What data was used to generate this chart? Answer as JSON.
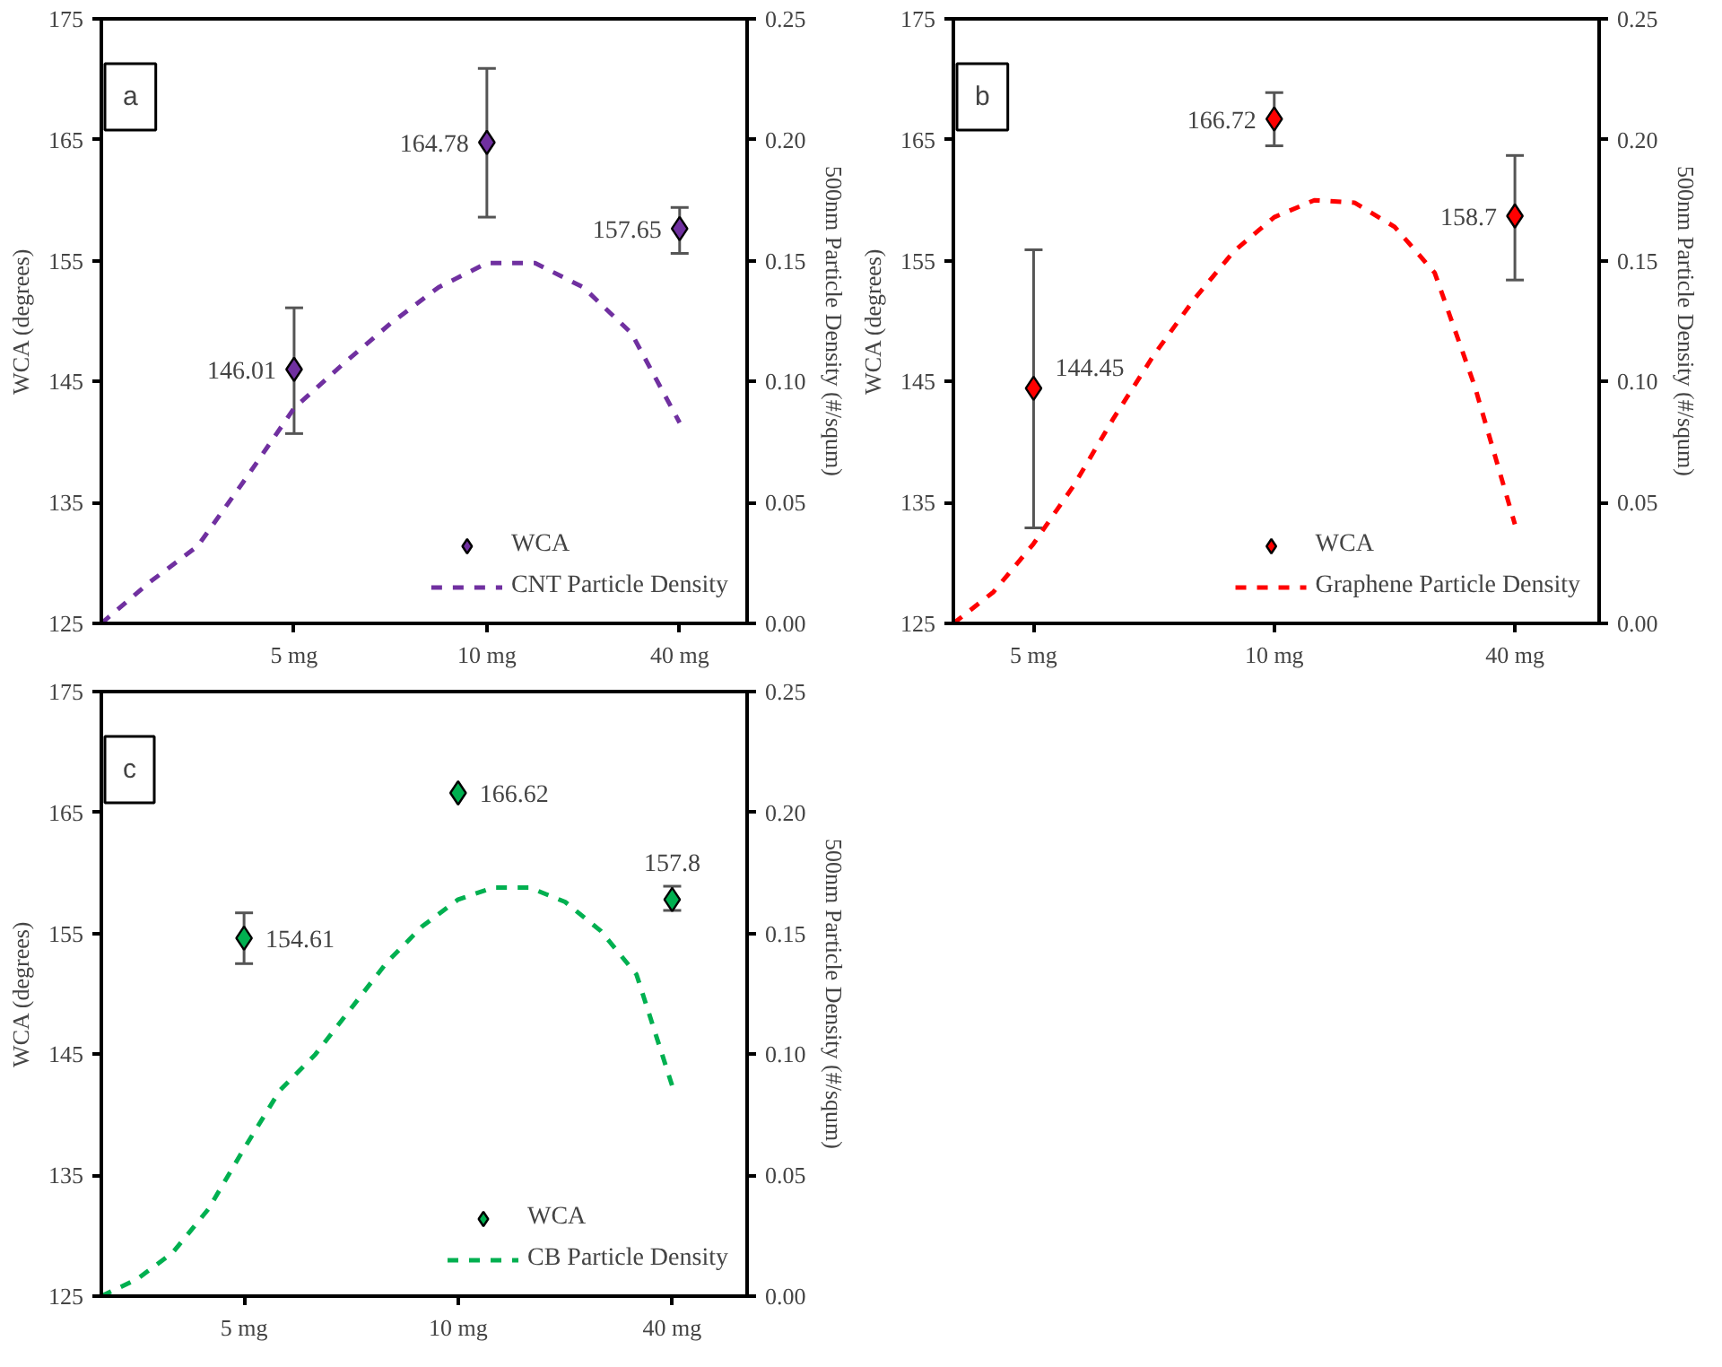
{
  "chart_data": [
    {
      "type": "scatter",
      "annotations": [
        "a"
      ],
      "ylabel": "WCA (degrees)",
      "y2label": "500nm Particle Density (#/squm)",
      "categories": [
        null,
        null,
        null,
        null,
        "5 mg",
        null,
        null,
        null,
        "10 mg",
        null,
        null,
        null,
        "40 mg"
      ],
      "ylim": [
        125,
        175
      ],
      "yticks": [
        125,
        135,
        145,
        155,
        165,
        175
      ],
      "y2lim": [
        0,
        0.25
      ],
      "y2ticks": [
        {
          "value": 0,
          "label": "0.00"
        },
        {
          "value": 0.05,
          "label": "0.05"
        },
        {
          "value": 0.1,
          "label": "0.10"
        },
        {
          "value": 0.15,
          "label": "0.15"
        },
        {
          "value": 0.2,
          "label": "0.20"
        },
        {
          "value": 0.25,
          "label": "0.25"
        }
      ],
      "grid": false,
      "legend": "bottom right",
      "series": [
        {
          "name": "WCA",
          "marker": "diamond",
          "color": "#7030a0",
          "values": [
            null,
            null,
            null,
            null,
            146.01,
            null,
            null,
            null,
            164.78,
            null,
            null,
            null,
            157.65
          ],
          "errors": [
            null,
            null,
            null,
            null,
            [
              140.7,
              151.1
            ],
            null,
            null,
            null,
            [
              158.6,
              170.9
            ],
            null,
            null,
            null,
            [
              155.6,
              159.4
            ]
          ],
          "data_labels": true
        },
        {
          "name": "CNT Particle Density",
          "type": "line",
          "axis": "y2",
          "line_style": "dashed",
          "marker": "none",
          "color": "#7030a0",
          "values": [
            0,
            0.017,
            0.032,
            0.06,
            0.089,
            0.107,
            0.124,
            0.139,
            0.149,
            0.149,
            0.139,
            0.12,
            0.083
          ]
        }
      ]
    },
    {
      "type": "scatter",
      "annotations": [
        "b"
      ],
      "ylabel": "WCA (degrees)",
      "y2label": "500nm Particle Density (#/squm)",
      "categories": [
        null,
        null,
        "5 mg",
        null,
        null,
        null,
        null,
        null,
        "10 mg",
        null,
        null,
        null,
        null,
        null,
        "40 mg"
      ],
      "ylim": [
        125,
        175
      ],
      "yticks": [
        125,
        135,
        145,
        155,
        165,
        175
      ],
      "y2lim": [
        0,
        0.25
      ],
      "y2ticks": [
        {
          "value": 0,
          "label": "0.00"
        },
        {
          "value": 0.05,
          "label": "0.05"
        },
        {
          "value": 0.1,
          "label": "0.10"
        },
        {
          "value": 0.15,
          "label": "0.15"
        },
        {
          "value": 0.2,
          "label": "0.20"
        },
        {
          "value": 0.25,
          "label": "0.25"
        }
      ],
      "grid": false,
      "legend": "bottom right",
      "series": [
        {
          "name": "WCA",
          "marker": "diamond",
          "color": "#ff0000",
          "values": [
            null,
            null,
            144.45,
            null,
            null,
            null,
            null,
            null,
            166.72,
            null,
            null,
            null,
            null,
            null,
            158.7
          ],
          "errors": [
            null,
            null,
            [
              132.9,
              155.9
            ],
            null,
            null,
            null,
            null,
            null,
            [
              164.5,
              168.9
            ],
            null,
            null,
            null,
            null,
            null,
            [
              153.4,
              163.7
            ]
          ],
          "data_labels": true
        },
        {
          "name": "Graphene Particle Density",
          "type": "line",
          "axis": "y2",
          "line_style": "dashed",
          "marker": "none",
          "color": "#ff0000",
          "values": [
            0,
            0.013,
            0.033,
            0.057,
            0.085,
            0.111,
            0.134,
            0.154,
            0.168,
            0.175,
            0.174,
            0.164,
            0.145,
            0.098,
            0.041
          ]
        }
      ]
    },
    {
      "type": "scatter",
      "annotations": [
        "c"
      ],
      "ylabel": "WCA (degrees)",
      "y2label": "500nm Particle Density (#/squm)",
      "categories": [
        null,
        null,
        null,
        null,
        "5 mg",
        null,
        null,
        null,
        null,
        null,
        "10 mg",
        null,
        null,
        null,
        null,
        null,
        "40 mg"
      ],
      "ylim": [
        125,
        175
      ],
      "yticks": [
        125,
        135,
        145,
        155,
        165,
        175
      ],
      "y2lim": [
        0,
        0.25
      ],
      "y2ticks": [
        {
          "value": 0,
          "label": "0.00"
        },
        {
          "value": 0.05,
          "label": "0.05"
        },
        {
          "value": 0.1,
          "label": "0.10"
        },
        {
          "value": 0.15,
          "label": "0.15"
        },
        {
          "value": 0.2,
          "label": "0.20"
        },
        {
          "value": 0.25,
          "label": "0.25"
        }
      ],
      "grid": false,
      "legend": "bottom right",
      "series": [
        {
          "name": "WCA",
          "marker": "diamond",
          "color": "#00b050",
          "values": [
            null,
            null,
            null,
            null,
            154.61,
            null,
            null,
            null,
            null,
            null,
            166.62,
            null,
            null,
            null,
            null,
            null,
            157.8
          ],
          "errors": [
            null,
            null,
            null,
            null,
            [
              152.5,
              156.7
            ],
            null,
            null,
            null,
            null,
            null,
            null,
            null,
            null,
            null,
            null,
            null,
            [
              156.9,
              158.9
            ]
          ],
          "data_labels": true
        },
        {
          "name": "CB Particle Density",
          "type": "line",
          "axis": "y2",
          "line_style": "dashed",
          "marker": "none",
          "color": "#00b050",
          "values": [
            0,
            0.007,
            0.018,
            0.036,
            0.061,
            0.085,
            0.1,
            0.119,
            0.138,
            0.153,
            0.164,
            0.169,
            0.169,
            0.163,
            0.151,
            0.133,
            0.087
          ]
        }
      ]
    }
  ]
}
